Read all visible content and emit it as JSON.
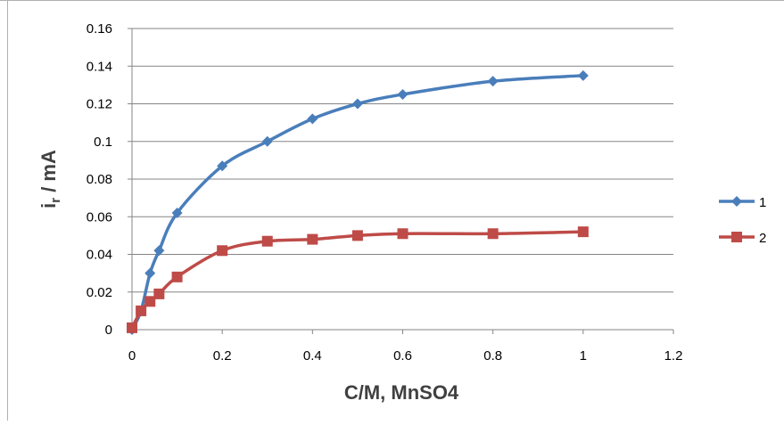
{
  "chart_data": {
    "type": "line",
    "title": "",
    "xlabel": "C/M, MnSO4",
    "ylabel_main": "i",
    "ylabel_sub": "r",
    "ylabel_rest": " / mA",
    "xlim": [
      0,
      1.2
    ],
    "ylim": [
      0,
      0.16
    ],
    "x_ticks": [
      0,
      0.2,
      0.4,
      0.6,
      0.8,
      1,
      1.2
    ],
    "x_tick_labels": [
      "0",
      "0.2",
      "0.4",
      "0.6",
      "0.8",
      "1",
      "1.2"
    ],
    "y_ticks": [
      0,
      0.02,
      0.04,
      0.06,
      0.08,
      0.1,
      0.12,
      0.14,
      0.16
    ],
    "y_tick_labels": [
      "0",
      "0.02",
      "0.04",
      "0.06",
      "0.08",
      "0.1",
      "0.12",
      "0.14",
      "0.16"
    ],
    "grid": "horizontal",
    "legend_position": "right",
    "series": [
      {
        "name": "1",
        "color": "#4a7ebb",
        "marker": "diamond",
        "points": [
          [
            0,
            0
          ],
          [
            0.02,
            0.01
          ],
          [
            0.04,
            0.03
          ],
          [
            0.06,
            0.042
          ],
          [
            0.1,
            0.062
          ],
          [
            0.2,
            0.087
          ],
          [
            0.3,
            0.1
          ],
          [
            0.4,
            0.112
          ],
          [
            0.5,
            0.12
          ],
          [
            0.6,
            0.125
          ],
          [
            0.8,
            0.132
          ],
          [
            1,
            0.135
          ]
        ]
      },
      {
        "name": "2",
        "color": "#be4b48",
        "marker": "square",
        "points": [
          [
            0,
            0.001
          ],
          [
            0.02,
            0.01
          ],
          [
            0.04,
            0.015
          ],
          [
            0.06,
            0.019
          ],
          [
            0.1,
            0.028
          ],
          [
            0.2,
            0.042
          ],
          [
            0.3,
            0.047
          ],
          [
            0.4,
            0.048
          ],
          [
            0.5,
            0.05
          ],
          [
            0.6,
            0.051
          ],
          [
            0.8,
            0.051
          ],
          [
            1,
            0.052
          ]
        ]
      }
    ]
  }
}
